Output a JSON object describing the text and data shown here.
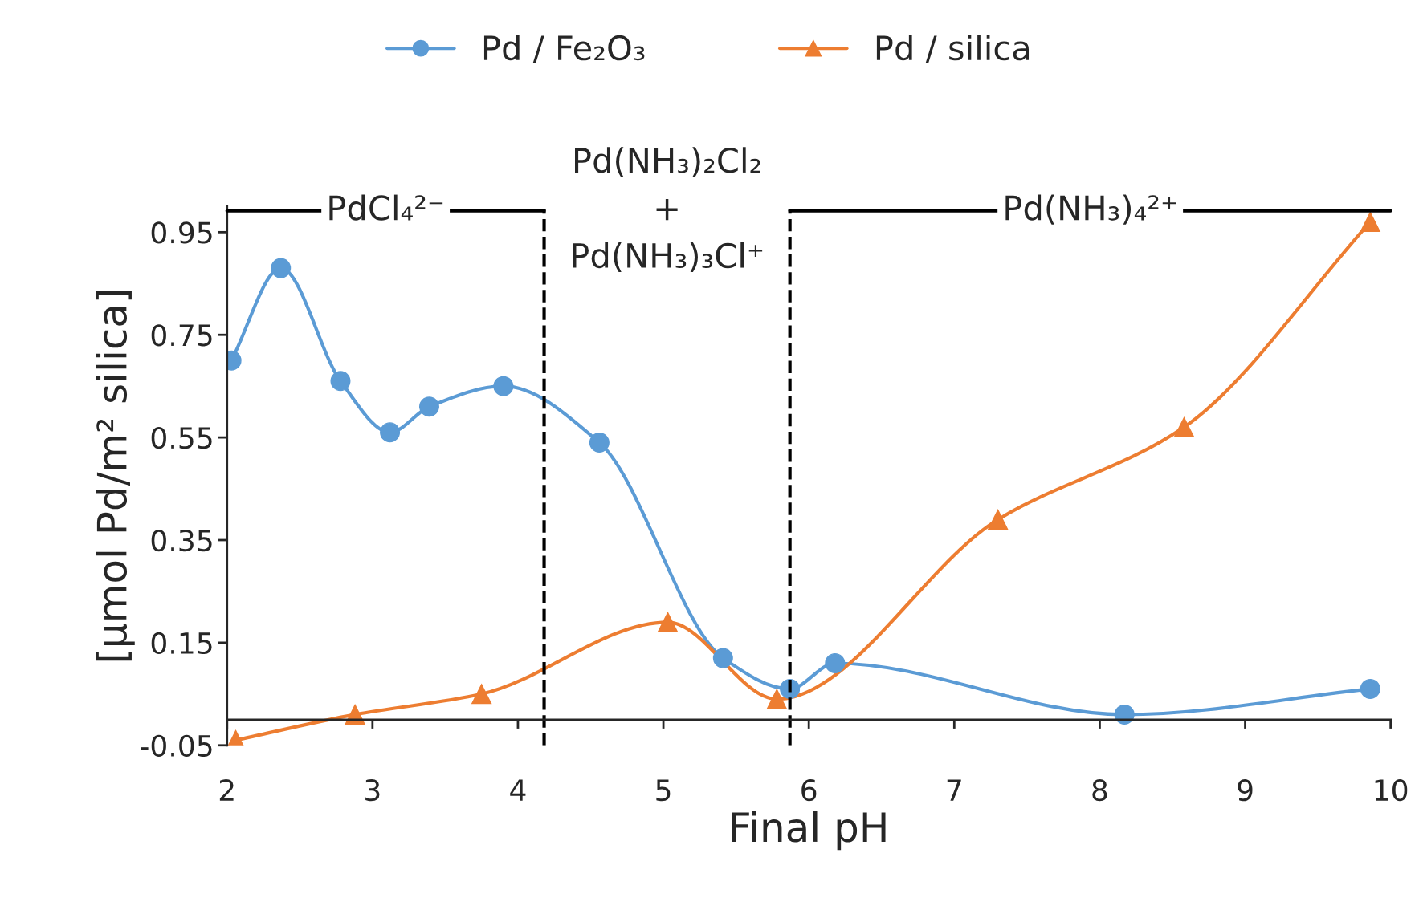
{
  "chart_data": {
    "type": "line",
    "xlabel": "Final pH",
    "ylabel": "[µmol Pd/m² silica]",
    "series": [
      {
        "name": "Pd / Fe₂O₃",
        "color": "#5b9bd5",
        "marker": "circle",
        "x": [
          2.03,
          2.37,
          2.78,
          3.12,
          3.39,
          3.9,
          4.56,
          5.41,
          5.87,
          6.18,
          8.17,
          9.86
        ],
        "values": [
          0.7,
          0.88,
          0.66,
          0.56,
          0.61,
          0.65,
          0.54,
          0.12,
          0.06,
          0.11,
          0.01,
          0.06
        ]
      },
      {
        "name": "Pd / silica",
        "color": "#ed7d31",
        "marker": "triangle",
        "x": [
          2.06,
          2.88,
          3.75,
          5.03,
          5.78,
          7.3,
          8.58,
          9.86
        ],
        "values": [
          -0.04,
          0.01,
          0.05,
          0.19,
          0.04,
          0.39,
          0.57,
          0.97
        ]
      }
    ],
    "xlim": [
      2,
      10
    ],
    "xticks": [
      2,
      3,
      4,
      5,
      6,
      7,
      8,
      9,
      10
    ],
    "ylim": [
      -0.05,
      1.0
    ],
    "yticks": [
      -0.05,
      0.15,
      0.35,
      0.55,
      0.75,
      0.95
    ],
    "ref_lines": [
      {
        "axis": "x",
        "value": 4.18,
        "color": "#000000",
        "line_style": "dashed"
      },
      {
        "axis": "x",
        "value": 5.87,
        "color": "#000000",
        "line_style": "dashed"
      }
    ],
    "annotations": [
      "PdCl₄²⁻",
      "Pd(NH₃)₂Cl₂\n+\nPd(NH₃)₃Cl⁺",
      "Pd(NH₃)₄²⁺"
    ],
    "grid": false,
    "legend": "top",
    "line_style": "solid"
  }
}
